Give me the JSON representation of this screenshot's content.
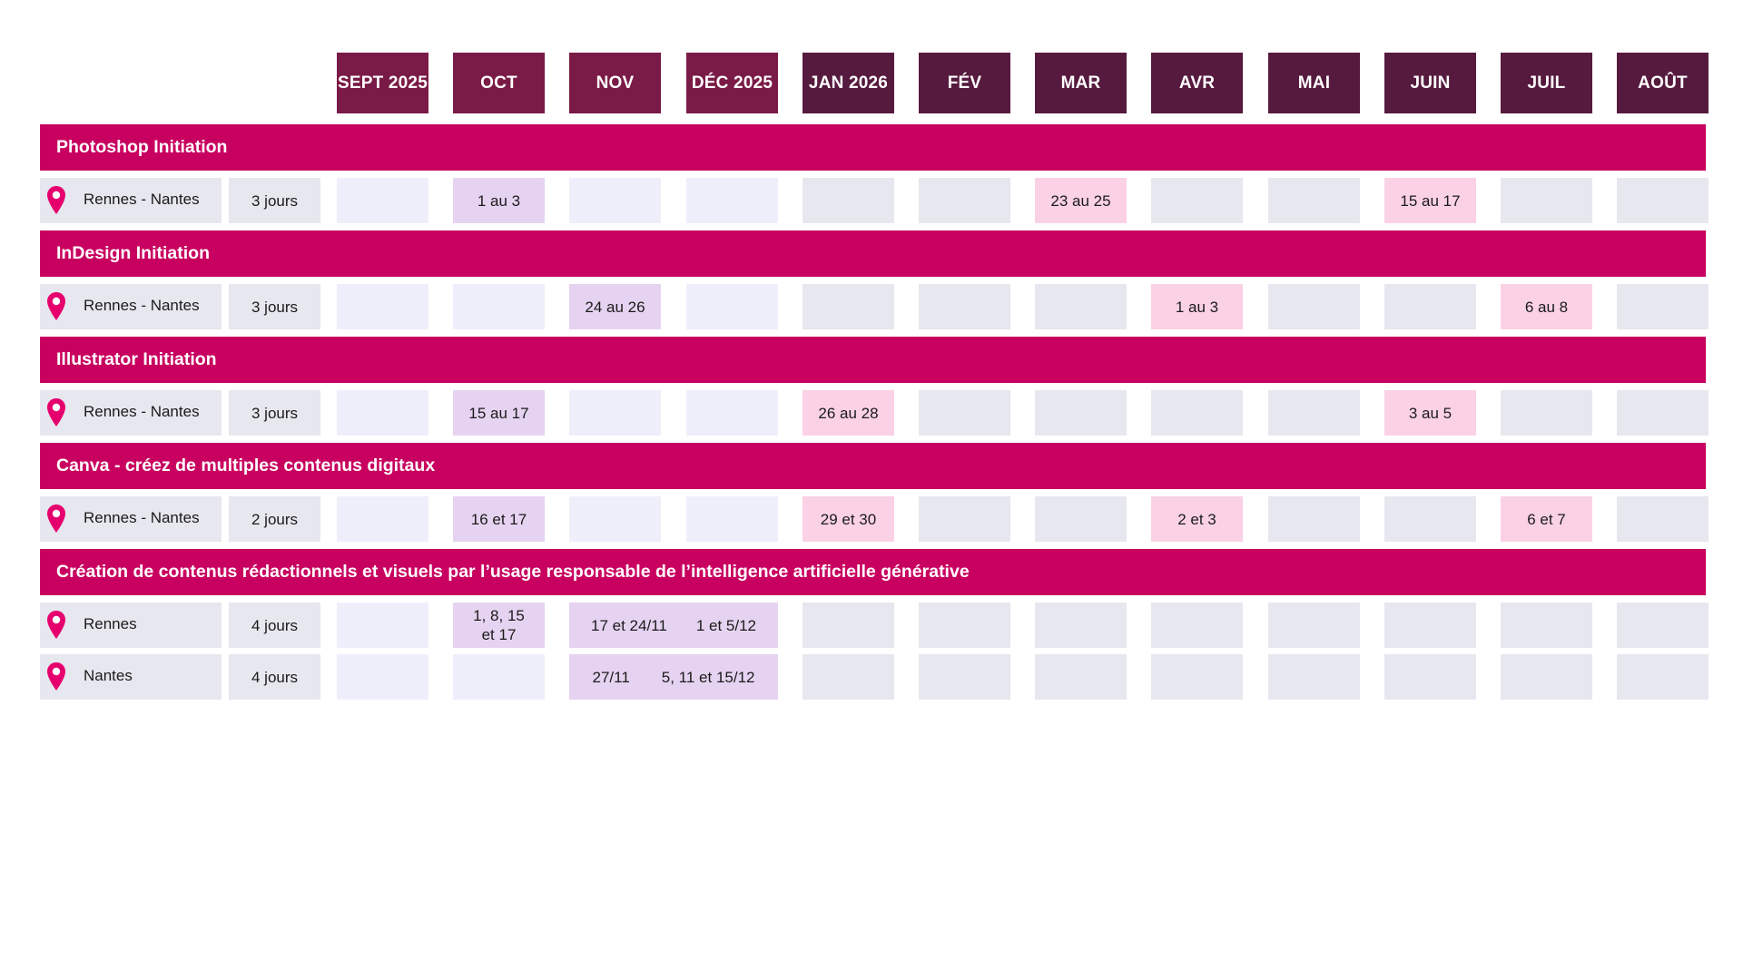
{
  "months": [
    "SEPT 2025",
    "OCT",
    "NOV",
    "DÉC 2025",
    "JAN 2026",
    "FÉV",
    "MAR",
    "AVR",
    "MAI",
    "JUIN",
    "JUIL",
    "AOÛT"
  ],
  "colors": {
    "month_header_2025": "#7a1a47",
    "month_header_2026": "#561a3e",
    "section_banner": "#c8005f",
    "pin": "#e5006e",
    "session_2025": "#e6d3f1",
    "session_2026": "#fbd1e6",
    "empty_2025": "#efeffb",
    "empty_2026": "#e7e7ef"
  },
  "sections": [
    {
      "title": "Photoshop Initiation",
      "rows": [
        {
          "location": "Rennes - Nantes",
          "duration": "3 jours",
          "sessions": [
            {
              "month": 1,
              "text": "1 au 3"
            },
            {
              "month": 6,
              "text": "23 au 25"
            },
            {
              "month": 9,
              "text": "15 au 17"
            }
          ]
        }
      ]
    },
    {
      "title": "InDesign Initiation",
      "rows": [
        {
          "location": "Rennes - Nantes",
          "duration": "3 jours",
          "sessions": [
            {
              "month": 2,
              "text": "24 au 26"
            },
            {
              "month": 7,
              "text": "1 au 3"
            },
            {
              "month": 10,
              "text": "6 au 8"
            }
          ]
        }
      ]
    },
    {
      "title": "Illustrator Initiation",
      "rows": [
        {
          "location": "Rennes - Nantes",
          "duration": "3 jours",
          "sessions": [
            {
              "month": 1,
              "text": "15 au 17"
            },
            {
              "month": 4,
              "text": "26 au 28"
            },
            {
              "month": 9,
              "text": "3 au 5"
            }
          ]
        }
      ]
    },
    {
      "title": "Canva - créez de multiples contenus digitaux",
      "rows": [
        {
          "location": "Rennes - Nantes",
          "duration": "2 jours",
          "sessions": [
            {
              "month": 1,
              "text": "16 et 17"
            },
            {
              "month": 4,
              "text": "29 et 30"
            },
            {
              "month": 7,
              "text": "2 et 3"
            },
            {
              "month": 10,
              "text": "6 et 7"
            }
          ]
        }
      ]
    },
    {
      "title": "Création de contenus rédactionnels et visuels par l’usage responsable de l’intelligence artificielle générative",
      "rows": [
        {
          "location": "Rennes",
          "duration": "4 jours",
          "sessions": [
            {
              "month": 1,
              "text": "1, 8, 15 et 17"
            },
            {
              "month": 2,
              "span": 2,
              "parts": [
                "17 et 24/11",
                "1 et 5/12"
              ]
            }
          ]
        },
        {
          "location": "Nantes",
          "duration": "4 jours",
          "sessions": [
            {
              "month": 2,
              "span": 2,
              "parts": [
                "27/11",
                "5, 11 et 15/12"
              ]
            }
          ]
        }
      ]
    }
  ]
}
